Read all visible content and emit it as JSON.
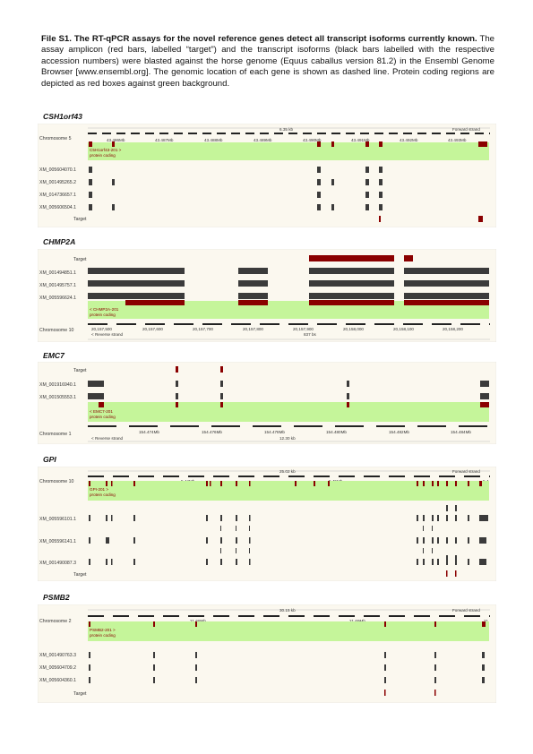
{
  "caption": {
    "bold": "File S1. The RT-qPCR assays for the novel reference genes detect all transcript isoforms currently known.",
    "body": " The assay amplicon (red bars, labelled “target”) and the transcript isoforms (black bars labelled with the respective accession numbers) were blasted against the horse genome (Equus caballus version 81.2) in the Ensembl Genome Browser [www.ensembl.org]. The genomic location of each gene is shown as dashed line. Protein coding regions are depicted as red boxes against green background."
  },
  "colors": {
    "exon": "#8a0000",
    "isoform": "#3b3b3b",
    "green": "#c5f59a",
    "panel": "#fbf8ef",
    "frame": "#cccccc"
  },
  "genes": [
    {
      "title": "CSH1orf43",
      "layout": "forward",
      "chromosome": "Chromosome 5",
      "scale_label": "6.35 kb",
      "strand_label": "Forward strand",
      "ticks": [
        "43.486Mb",
        "43.487Mb",
        "43.488Mb",
        "43.489Mb",
        "43.490Mb",
        "43.491Mb",
        "43.492Mb",
        "43.493Mb"
      ],
      "transcript_name": "C5H1orf43-201 >",
      "transcript_type": "protein coding",
      "isoforms": [
        "XM_005604070.1",
        "XM_001495265.2",
        "XM_014736657.1",
        "XM_005606504.1"
      ],
      "target_label": "Target"
    },
    {
      "title": "CHMP2A",
      "layout": "reverse",
      "chromosome": "Chromosome 10",
      "scale_label": "837 bs",
      "strand_label": "< Reverse strand",
      "ticks": [
        "20,157,500",
        "20,157,600",
        "20,157,700",
        "20,157,800",
        "20,157,900",
        "20,158,000",
        "20,158,100",
        "20,158,200"
      ],
      "transcript_name": "< CHMP2A-201",
      "transcript_type": "protein coding",
      "isoforms": [
        "XM_001494851.1",
        "XM_001495757.1",
        "XM_005596624.1"
      ],
      "target_label": "Target"
    },
    {
      "title": "EMC7",
      "layout": "reverse",
      "chromosome": "Chromosome 1",
      "scale_label": "12.30 kb",
      "strand_label": "< Reverse strand",
      "ticks": [
        "154.474Mb",
        "154.476Mb",
        "154.478Mb",
        "154.480Mb",
        "154.482Mb",
        "154.484Mb"
      ],
      "transcript_name": "< EMC7-201",
      "transcript_type": "protein coding",
      "isoforms": [
        "XM_001916940.1",
        "XM_001505553.1"
      ],
      "target_label": "Target"
    },
    {
      "title": "GPI",
      "layout": "forward",
      "chromosome": "Chromosome 10",
      "scale_label": "25.02 kb",
      "strand_label": "Forward strand",
      "ticks": [
        "5.44Mb",
        "5.45Mb",
        "5.4"
      ],
      "transcript_name": "GPI-201 >",
      "transcript_type": "protein coding",
      "isoforms": [
        "XM_005596101.1",
        "XM_005596141.1",
        "XM_001490087.3"
      ],
      "target_label": "Target"
    },
    {
      "title": "PSMB2",
      "layout": "forward",
      "chromosome": "Chromosome 2",
      "scale_label": "30.15 kb",
      "strand_label": "Forward strand",
      "ticks": [
        "21.68Mb",
        "21.69Mb",
        "21."
      ],
      "transcript_name": "PSMB2-201 >",
      "transcript_type": "protein coding",
      "isoforms": [
        "XM_001490763.3",
        "XM_005604709.2",
        "XM_005604360.1"
      ],
      "target_label": "Target"
    }
  ]
}
